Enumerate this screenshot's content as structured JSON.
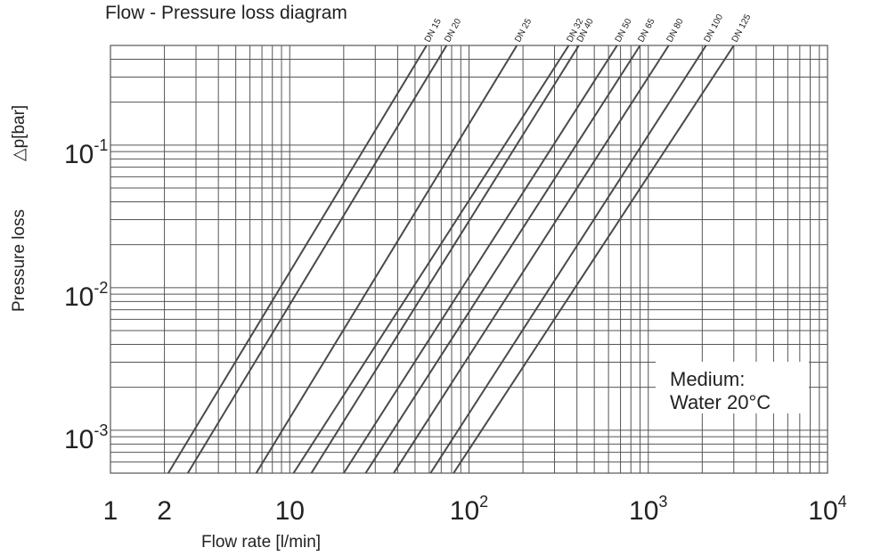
{
  "chart_data": {
    "type": "line",
    "title": "Flow - Pressure loss diagram",
    "xlabel": "Flow rate [l/min]",
    "ylabel_left": "Pressure loss",
    "ylabel_right": "△p[bar]",
    "x_scale": "log",
    "y_scale": "log",
    "xlim": [
      1,
      10000
    ],
    "ylim": [
      0.0005,
      0.5
    ],
    "grid": true,
    "x_ticks": [
      {
        "value": 1,
        "base": "1",
        "sup": ""
      },
      {
        "value": 2,
        "base": "2",
        "sup": ""
      },
      {
        "value": 10,
        "base": "10",
        "sup": ""
      },
      {
        "value": 100,
        "base": "10",
        "sup": "2"
      },
      {
        "value": 1000,
        "base": "10",
        "sup": "3"
      },
      {
        "value": 10000,
        "base": "10",
        "sup": "4"
      }
    ],
    "y_ticks": [
      {
        "value": 0.1,
        "base": "10",
        "sup": "-1"
      },
      {
        "value": 0.01,
        "base": "10",
        "sup": "-2"
      },
      {
        "value": 0.001,
        "base": "10",
        "sup": "-3"
      }
    ],
    "series": [
      {
        "name": "DN 15",
        "x": [
          2.1,
          58
        ],
        "y": [
          0.0005,
          0.5
        ]
      },
      {
        "name": "DN 20",
        "x": [
          2.7,
          75
        ],
        "y": [
          0.0005,
          0.5
        ]
      },
      {
        "name": "DN 25",
        "x": [
          6.5,
          185
        ],
        "y": [
          0.0005,
          0.5
        ]
      },
      {
        "name": "DN 32",
        "x": [
          10.5,
          360
        ],
        "y": [
          0.0005,
          0.5
        ]
      },
      {
        "name": "DN 40",
        "x": [
          13.2,
          410
        ],
        "y": [
          0.0005,
          0.5
        ]
      },
      {
        "name": "DN 50",
        "x": [
          20,
          670
        ],
        "y": [
          0.0005,
          0.5
        ]
      },
      {
        "name": "DN 65",
        "x": [
          26.5,
          900
        ],
        "y": [
          0.0005,
          0.5
        ]
      },
      {
        "name": "DN 80",
        "x": [
          38,
          1300
        ],
        "y": [
          0.0005,
          0.5
        ]
      },
      {
        "name": "DN 100",
        "x": [
          61,
          2100
        ],
        "y": [
          0.0005,
          0.5
        ]
      },
      {
        "name": "DN 125",
        "x": [
          82,
          3000
        ],
        "y": [
          0.0005,
          0.5
        ]
      }
    ],
    "annotation": {
      "line1": "Medium:",
      "line2": "Water 20°C",
      "placement": "bottom-right"
    },
    "colors": {
      "lines": "#4a4a4a",
      "grid": "#555555",
      "text": "#222222"
    }
  }
}
